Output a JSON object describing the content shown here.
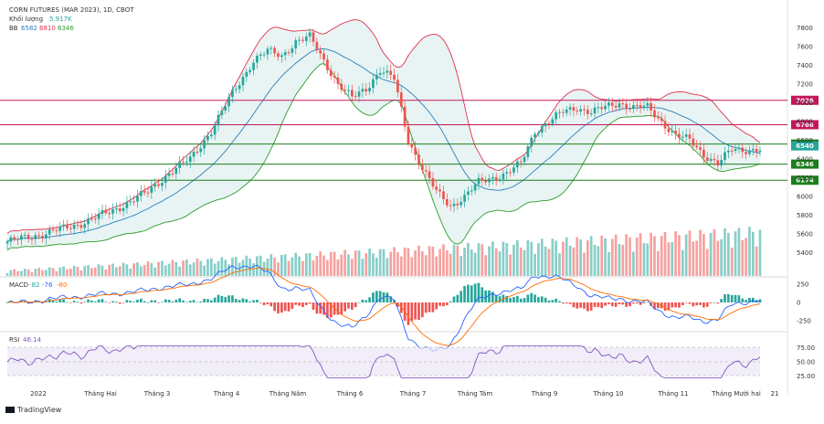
{
  "header": {
    "title": "CORN FUTURES (MAR 2023), 1D, CBOT",
    "volume_label": "Khối lượng",
    "volume_value": "5.917K",
    "bb_label": "BB",
    "bb_values": [
      "6582",
      "6810",
      "6346"
    ]
  },
  "macd": {
    "label": "MACD",
    "values": [
      "-82",
      "-76",
      "-80"
    ]
  },
  "rsi": {
    "label": "RSI",
    "value": "46.14"
  },
  "footer": {
    "brand": "TradingView"
  },
  "colors": {
    "up": "#26a69a",
    "down": "#ef5350",
    "bb_upper": "#e0314b",
    "bb_basis": "#2a7fbf",
    "bb_lower": "#2e9b2e",
    "bb_fill": "#e8f4f3",
    "red_line": "#c2185b",
    "green_line": "#1b7f1b",
    "macd_line": "#2962ff",
    "signal_line": "#ff6d00",
    "rsi_line": "#7e57c2"
  },
  "chart_data": {
    "type": "candlestick",
    "title": "CORN FUTURES (MAR 2023), 1D, CBOT",
    "x_labels": [
      "2022",
      "Tháng Hai",
      "Tháng 3",
      "Tháng 4",
      "Tháng Năm",
      "Tháng 6",
      "Tháng 7",
      "Tháng Tám",
      "Tháng 9",
      "Tháng 10",
      "Tháng 11",
      "Tháng Mười hai",
      "21"
    ],
    "price_ticks": [
      "7800",
      "7600",
      "7400",
      "7200",
      "7000",
      "6800",
      "6600",
      "6400",
      "6200",
      "6000",
      "5800",
      "5600",
      "5400"
    ],
    "ylim": [
      5300,
      7900
    ],
    "horizontal_levels": [
      {
        "label": "7026",
        "value": 7026,
        "color": "red"
      },
      {
        "label": "6766",
        "value": 6766,
        "color": "red"
      },
      {
        "label": "6560",
        "value": 6560,
        "color": "green"
      },
      {
        "label": "6540",
        "value": 6540,
        "color": "teal"
      },
      {
        "label": "6346",
        "value": 6346,
        "color": "green"
      },
      {
        "label": "6174",
        "value": 6174,
        "color": "green"
      }
    ],
    "price_path": [
      [
        0,
        5520
      ],
      [
        10,
        5600
      ],
      [
        20,
        5700
      ],
      [
        30,
        5850
      ],
      [
        40,
        6050
      ],
      [
        46,
        6250
      ],
      [
        52,
        6400
      ],
      [
        58,
        6700
      ],
      [
        64,
        7100
      ],
      [
        70,
        7450
      ],
      [
        74,
        7550
      ],
      [
        78,
        7500
      ],
      [
        82,
        7650
      ],
      [
        86,
        7700
      ],
      [
        90,
        7450
      ],
      [
        94,
        7200
      ],
      [
        98,
        7050
      ],
      [
        102,
        7150
      ],
      [
        106,
        7350
      ],
      [
        110,
        7250
      ],
      [
        114,
        6600
      ],
      [
        118,
        6300
      ],
      [
        122,
        6050
      ],
      [
        126,
        5900
      ],
      [
        130,
        6000
      ],
      [
        134,
        6150
      ],
      [
        138,
        6200
      ],
      [
        142,
        6250
      ],
      [
        146,
        6350
      ],
      [
        150,
        6700
      ],
      [
        154,
        6800
      ],
      [
        158,
        6900
      ],
      [
        162,
        6950
      ],
      [
        166,
        6900
      ],
      [
        170,
        6950
      ],
      [
        174,
        7000
      ],
      [
        178,
        6950
      ],
      [
        182,
        6950
      ],
      [
        186,
        6800
      ],
      [
        190,
        6650
      ],
      [
        194,
        6600
      ],
      [
        198,
        6450
      ],
      [
        202,
        6350
      ],
      [
        206,
        6500
      ]
    ],
    "price_ticks_macd": [
      "250",
      "0",
      "-250"
    ],
    "price_ticks_rsi": [
      "75.00",
      "50.00",
      "25.00"
    ]
  }
}
